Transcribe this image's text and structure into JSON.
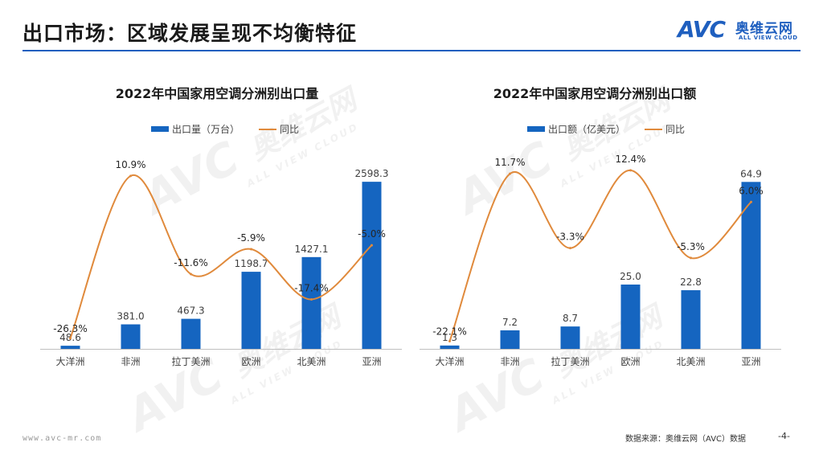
{
  "header": {
    "title": "出口市场：区域发展呈现不均衡特征",
    "logo_avc": "AVC",
    "logo_cn": "奥维云网",
    "logo_en": "ALL VIEW CLOUD"
  },
  "colors": {
    "accent": "#1f5fbf",
    "bar": "#1565c0",
    "line": "#e08a3c"
  },
  "watermark": {
    "avc": "AVC",
    "cn": "奥维云网",
    "en": "ALL VIEW CLOUD"
  },
  "footer": {
    "url": "www.avc-mr.com",
    "source": "数据来源：奥维云网（AVC）数据",
    "page": "-4-"
  },
  "chart_data": [
    {
      "type": "bar",
      "title": "2022年中国家用空调分洲别出口量",
      "categories": [
        "大洋洲",
        "非洲",
        "拉丁美洲",
        "欧洲",
        "北美洲",
        "亚洲"
      ],
      "series": [
        {
          "name": "出口量（万台）",
          "type": "bar",
          "values": [
            48.6,
            381.0,
            467.3,
            1198.7,
            1427.1,
            2598.3
          ],
          "labels": [
            "48.6",
            "381.0",
            "467.3",
            "1198.7",
            "1427.1",
            "2598.3"
          ]
        },
        {
          "name": "同比",
          "type": "line",
          "values": [
            -26.3,
            10.9,
            -11.6,
            -5.9,
            -17.4,
            -5.0
          ],
          "labels": [
            "-26.3%",
            "10.9%",
            "-11.6%",
            "-5.9%",
            "-17.4%",
            "-5.0%"
          ]
        }
      ],
      "bar_max": 2800,
      "line_range": [
        -28,
        14
      ]
    },
    {
      "type": "bar",
      "title": "2022年中国家用空调分洲别出口额",
      "categories": [
        "大洋洲",
        "非洲",
        "拉丁美洲",
        "欧洲",
        "北美洲",
        "亚洲"
      ],
      "series": [
        {
          "name": "出口额（亿美元）",
          "type": "bar",
          "values": [
            1.3,
            7.2,
            8.7,
            25.0,
            22.8,
            64.9
          ],
          "labels": [
            "1.3",
            "7.2",
            "8.7",
            "25.0",
            "22.8",
            "64.9"
          ]
        },
        {
          "name": "同比",
          "type": "line",
          "values": [
            -22.1,
            11.7,
            -3.3,
            12.4,
            -5.3,
            6.0
          ],
          "labels": [
            "-22.1%",
            "11.7%",
            "-3.3%",
            "12.4%",
            "-5.3%",
            "6.0%"
          ]
        }
      ],
      "bar_max": 70,
      "line_range": [
        -23,
        14
      ]
    }
  ]
}
